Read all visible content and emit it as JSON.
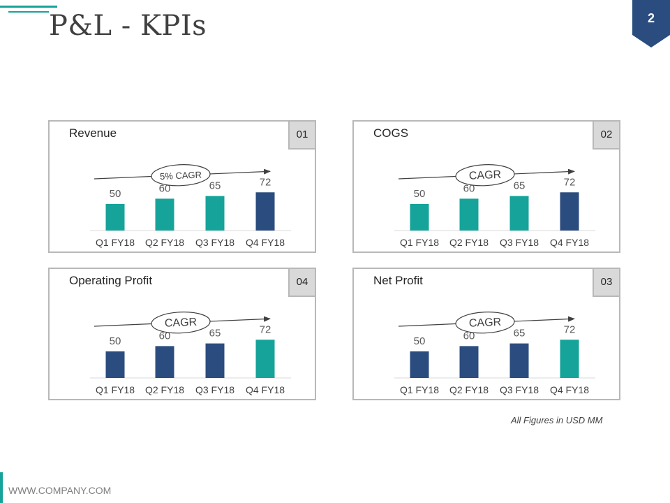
{
  "title": "P&L - KPIs",
  "page_number": "2",
  "footnote": "All Figures in USD MM",
  "footer": "WWW.COMPANY.COM",
  "colors": {
    "teal": "#16a39a",
    "navy": "#2b4c7e",
    "badge": "#2b4c7e",
    "gray": "#d9d9d9"
  },
  "chart_data": [
    {
      "type": "bar",
      "title": "Revenue",
      "number": "01",
      "categories": [
        "Q1 FY18",
        "Q2 FY18",
        "Q3 FY18",
        "Q4 FY18"
      ],
      "values": [
        50,
        60,
        65,
        72
      ],
      "bar_colors": [
        "#16a39a",
        "#16a39a",
        "#16a39a",
        "#2b4c7e"
      ],
      "ylim": [
        0,
        100
      ],
      "trend_label": "5% CAGR"
    },
    {
      "type": "bar",
      "title": "COGS",
      "number": "02",
      "categories": [
        "Q1 FY18",
        "Q2 FY18",
        "Q3 FY18",
        "Q4 FY18"
      ],
      "values": [
        50,
        60,
        65,
        72
      ],
      "bar_colors": [
        "#16a39a",
        "#16a39a",
        "#16a39a",
        "#2b4c7e"
      ],
      "ylim": [
        0,
        100
      ],
      "trend_label": "CAGR"
    },
    {
      "type": "bar",
      "title": "Operating Profit",
      "number": "04",
      "categories": [
        "Q1 FY18",
        "Q2 FY18",
        "Q3 FY18",
        "Q4 FY18"
      ],
      "values": [
        50,
        60,
        65,
        72
      ],
      "bar_colors": [
        "#2b4c7e",
        "#2b4c7e",
        "#2b4c7e",
        "#16a39a"
      ],
      "ylim": [
        0,
        100
      ],
      "trend_label": "CAGR"
    },
    {
      "type": "bar",
      "title": "Net Profit",
      "number": "03",
      "categories": [
        "Q1 FY18",
        "Q2 FY18",
        "Q3 FY18",
        "Q4 FY18"
      ],
      "values": [
        50,
        60,
        65,
        72
      ],
      "bar_colors": [
        "#2b4c7e",
        "#2b4c7e",
        "#2b4c7e",
        "#16a39a"
      ],
      "ylim": [
        0,
        100
      ],
      "trend_label": "CAGR"
    }
  ]
}
